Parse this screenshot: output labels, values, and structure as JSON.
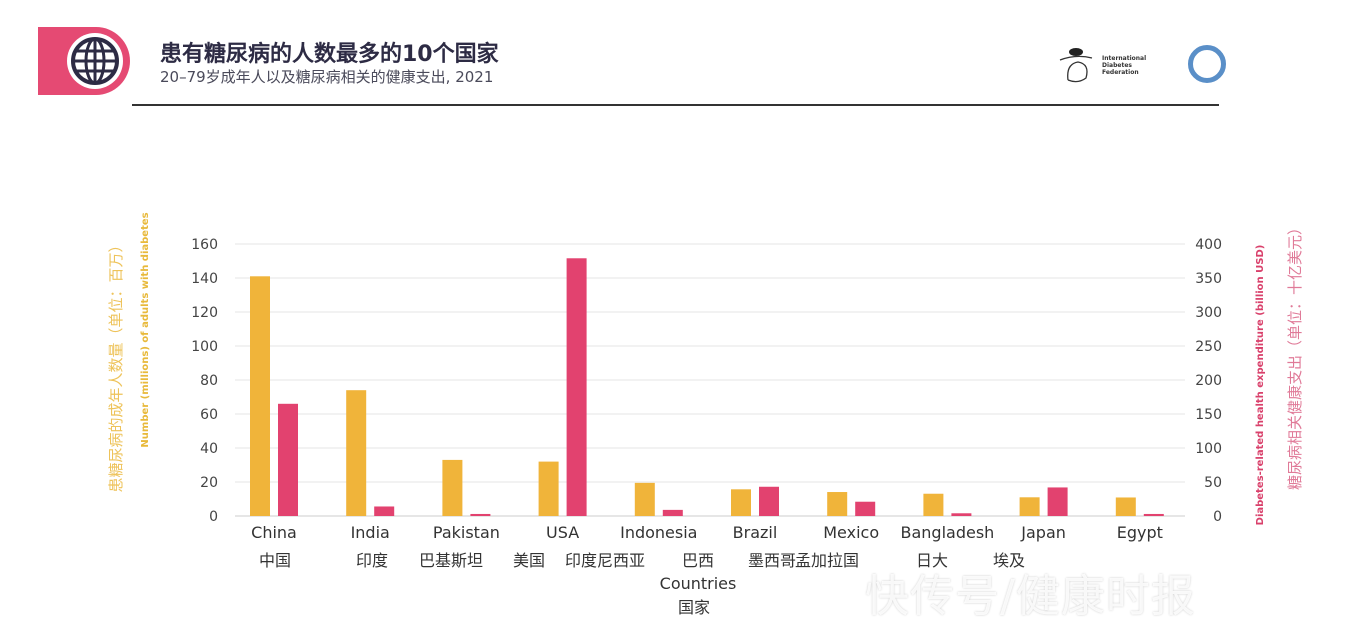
{
  "header": {
    "title": "患有糖尿病的人数最多的10个国家",
    "subtitle": "20–79岁成年人以及糖尿病相关的健康支出, 2021",
    "logo_text": "International Diabetes Federation",
    "icons": [
      "globe-icon",
      "blue-circle-icon"
    ],
    "badge_color": "#e54a73"
  },
  "watermark": "快传号/健康时报",
  "chart_data": {
    "type": "bar",
    "categories": [
      "China",
      "India",
      "Pakistan",
      "USA",
      "Indonesia",
      "Brazil",
      "Mexico",
      "Bangladesh",
      "Japan",
      "Egypt"
    ],
    "categories_cn": [
      "中国",
      "印度",
      "巴基斯坦",
      "美国",
      "印度尼西亚",
      "巴西",
      "墨西哥",
      "孟加拉国",
      "日大",
      "埃及"
    ],
    "xlabel": "Countries",
    "xlabel_cn": "国家",
    "ylabel_left": "Number (millions) of adults with diabetes",
    "ylabel_left_cn": "患糖尿病的成年人数量（单位：百万）",
    "ylabel_right": "Diabetes-related health expenditure (billion USD)",
    "ylabel_right_cn": "糖尿病相关健康支出（单位：十亿美元）",
    "ylim_left": [
      0,
      160
    ],
    "yticks_left": [
      0,
      20,
      40,
      60,
      80,
      100,
      120,
      140,
      160
    ],
    "ylim_right": [
      0,
      400
    ],
    "yticks_right": [
      0,
      50,
      100,
      150,
      200,
      250,
      300,
      350,
      400
    ],
    "grid": true,
    "series": [
      {
        "axis": "left",
        "color": "#f0b43a",
        "values": [
          141,
          74,
          33,
          32,
          19.5,
          15.7,
          14.1,
          13.1,
          11,
          10.9
        ]
      },
      {
        "axis": "right",
        "color": "#e2426f",
        "values": [
          165,
          14,
          3,
          379,
          9,
          43,
          21,
          4,
          42,
          3
        ]
      }
    ]
  }
}
